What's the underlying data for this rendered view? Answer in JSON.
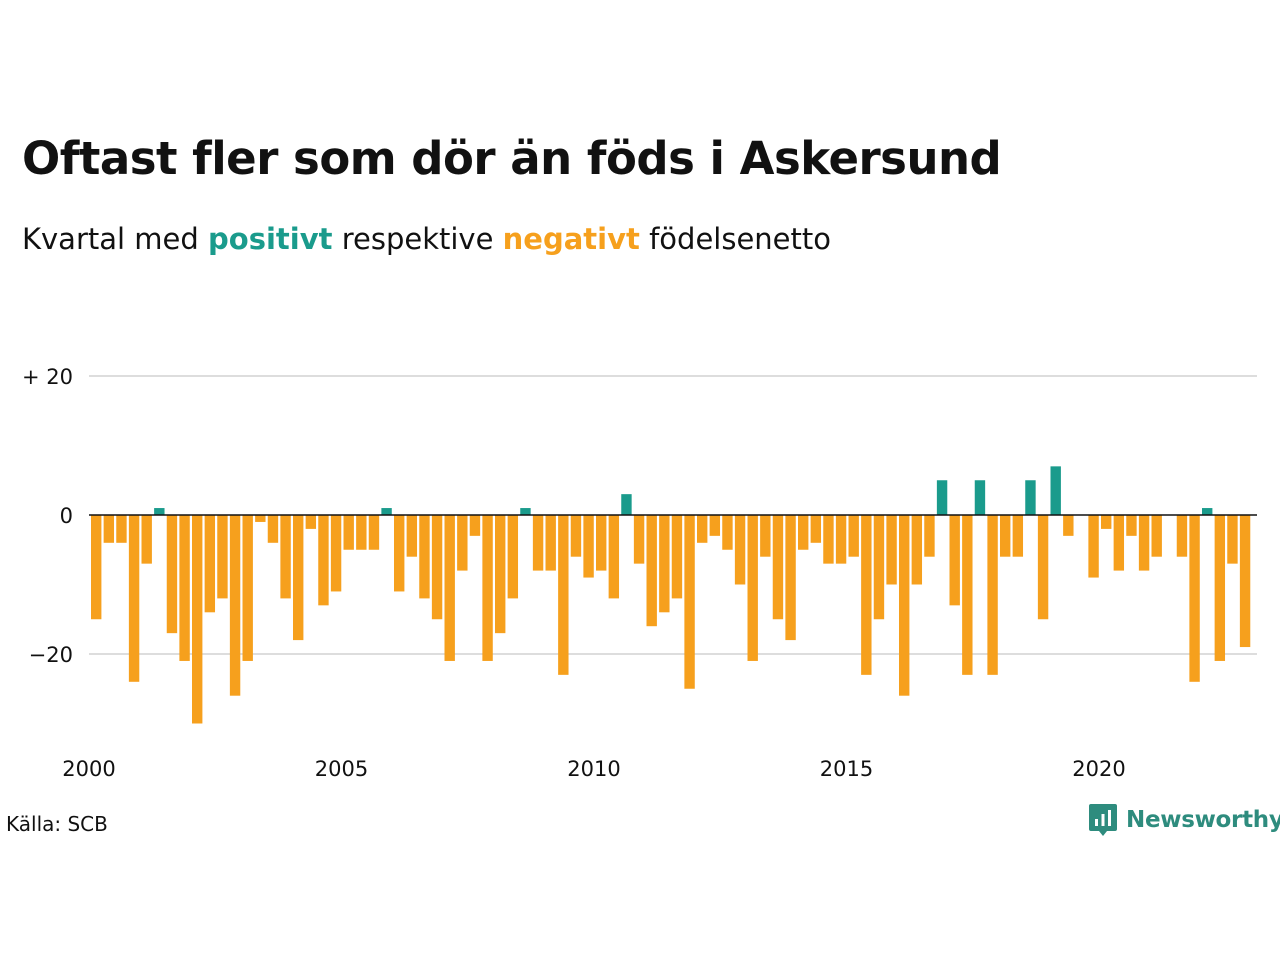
{
  "header": {
    "title": "Oftast fler som dör än föds i Askersund",
    "subtitle_before": "Kvartal med ",
    "subtitle_positive": "positivt",
    "subtitle_middle": " respektive ",
    "subtitle_negative": "negativt",
    "subtitle_after": " födelsenetto"
  },
  "footer": {
    "source": "Källa: SCB",
    "brand": "Newsworthy"
  },
  "colors": {
    "positive": "#1a9b8c",
    "negative": "#f6a01d",
    "grid": "#dddddd",
    "zero_line": "#111111",
    "text": "#111111",
    "brand": "#2e8c7e"
  },
  "icons": {
    "brand_logo": "newsworthy-logo-icon"
  },
  "chart_data": {
    "type": "bar",
    "title": "Oftast fler som dör än föds i Askersund",
    "subtitle": "Kvartal med positivt respektive negativt födelsenetto",
    "xlabel": "",
    "ylabel": "",
    "x_start": "2000-Q1",
    "x_end": "2023-Q1",
    "x_ticks": [
      2000,
      2005,
      2010,
      2015,
      2020
    ],
    "ylim": [
      -30,
      20
    ],
    "y_ticks": [
      {
        "value": 20,
        "label": "+ 20"
      },
      {
        "value": 0,
        "label": "0"
      },
      {
        "value": -20,
        "label": "−20"
      }
    ],
    "grid": true,
    "legend": "inline in subtitle",
    "series": [
      {
        "quarters": [
          "2000-Q1",
          "2000-Q2",
          "2000-Q3",
          "2000-Q4",
          "2001-Q1",
          "2001-Q2",
          "2001-Q3",
          "2001-Q4",
          "2002-Q1",
          "2002-Q2",
          "2002-Q3",
          "2002-Q4",
          "2003-Q1",
          "2003-Q2",
          "2003-Q3",
          "2003-Q4",
          "2004-Q1",
          "2004-Q2",
          "2004-Q3",
          "2004-Q4",
          "2005-Q1",
          "2005-Q2",
          "2005-Q3",
          "2005-Q4",
          "2006-Q1",
          "2006-Q2",
          "2006-Q3",
          "2006-Q4",
          "2007-Q1",
          "2007-Q2",
          "2007-Q3",
          "2007-Q4",
          "2008-Q1",
          "2008-Q2",
          "2008-Q3",
          "2008-Q4",
          "2009-Q1",
          "2009-Q2",
          "2009-Q3",
          "2009-Q4",
          "2010-Q1",
          "2010-Q2",
          "2010-Q3",
          "2010-Q4",
          "2011-Q1",
          "2011-Q2",
          "2011-Q3",
          "2011-Q4",
          "2012-Q1",
          "2012-Q2",
          "2012-Q3",
          "2012-Q4",
          "2013-Q1",
          "2013-Q2",
          "2013-Q3",
          "2013-Q4",
          "2014-Q1",
          "2014-Q2",
          "2014-Q3",
          "2014-Q4",
          "2015-Q1",
          "2015-Q2",
          "2015-Q3",
          "2015-Q4",
          "2016-Q1",
          "2016-Q2",
          "2016-Q3",
          "2016-Q4",
          "2017-Q1",
          "2017-Q2",
          "2017-Q3",
          "2017-Q4",
          "2018-Q1",
          "2018-Q2",
          "2018-Q3",
          "2018-Q4",
          "2019-Q1",
          "2019-Q2",
          "2019-Q3",
          "2019-Q4",
          "2020-Q1",
          "2020-Q2",
          "2020-Q3",
          "2020-Q4",
          "2021-Q1",
          "2021-Q2",
          "2021-Q3",
          "2021-Q4",
          "2022-Q1",
          "2022-Q2",
          "2022-Q3",
          "2022-Q4",
          "2023-Q1"
        ],
        "values": [
          -15,
          -4,
          -4,
          -24,
          -7,
          1,
          -17,
          -21,
          -30,
          -14,
          -12,
          -26,
          -21,
          -1,
          -4,
          -12,
          -18,
          -2,
          -13,
          -11,
          -5,
          -5,
          -5,
          1,
          -11,
          -6,
          -12,
          -15,
          -21,
          -8,
          -3,
          -21,
          -17,
          -12,
          1,
          -8,
          -8,
          -23,
          -6,
          -9,
          -8,
          -12,
          3,
          -7,
          -16,
          -14,
          -12,
          -25,
          -4,
          -3,
          -5,
          -10,
          -21,
          -6,
          -15,
          -18,
          -5,
          -4,
          -7,
          -7,
          -6,
          -23,
          -15,
          -10,
          -26,
          -10,
          -6,
          5,
          -13,
          -23,
          5,
          -23,
          -6,
          -6,
          5,
          -15,
          7,
          -3,
          0,
          -9,
          -2,
          -8,
          -3,
          -8,
          -6,
          0,
          -6,
          -24,
          1,
          -21,
          -7,
          -19,
          0
        ]
      }
    ]
  }
}
